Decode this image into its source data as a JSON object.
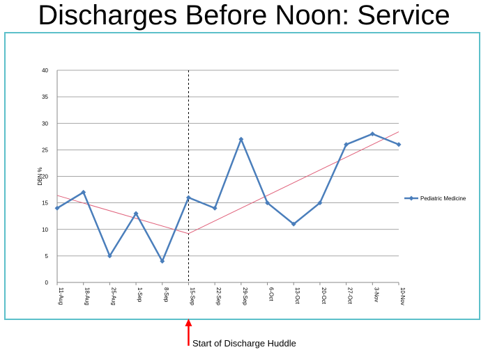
{
  "slide": {
    "title": "Discharges Before Noon: Service",
    "annotation": "Start of Discharge Huddle"
  },
  "colors": {
    "frame": "#5bbfc9",
    "series": "#4a7ebb",
    "trend": "#e0607a",
    "arrow": "#ff0000",
    "grid": "#888888"
  },
  "chart_data": {
    "type": "line",
    "ylabel": "DBN %",
    "xlabel": "",
    "ylim": [
      0,
      40
    ],
    "yticks": [
      "0",
      "5",
      "10",
      "15",
      "20",
      "25",
      "30",
      "35",
      "40"
    ],
    "grid": "horizontal",
    "legend_position": "right",
    "categories": [
      "11-Aug",
      "18-Aug",
      "25-Aug",
      "1-Sep",
      "8-Sep",
      "15-Sep",
      "22-Sep",
      "29-Sep",
      "6-Oct",
      "13-Oct",
      "20-Oct",
      "27-Oct",
      "3-Nov",
      "10-Nov"
    ],
    "series": [
      {
        "name": "Pediatric Medicine",
        "values": [
          14,
          17,
          5,
          13,
          4,
          16,
          14,
          27,
          15,
          11,
          15,
          26,
          28,
          26
        ]
      }
    ],
    "trend_lines": [
      {
        "from": [
          "11-Aug",
          16.4
        ],
        "to": [
          "15-Sep",
          9.2
        ]
      },
      {
        "from": [
          "15-Sep",
          9.2
        ],
        "to": [
          "10-Nov",
          28.4
        ]
      }
    ],
    "marker_line": "15-Sep"
  }
}
